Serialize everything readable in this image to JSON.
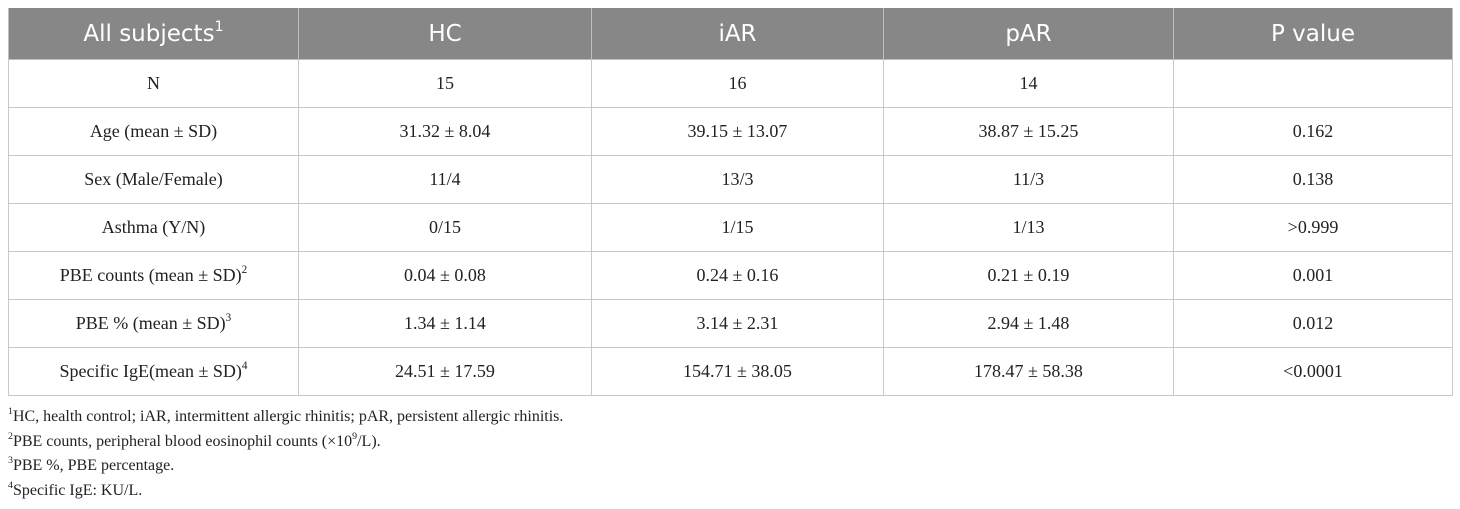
{
  "table": {
    "header": [
      "All subjects",
      "HC",
      "iAR",
      "pAR",
      "P value"
    ],
    "header_note": "1",
    "rows": [
      {
        "label": "N",
        "values": [
          "15",
          "16",
          "14",
          null
        ]
      },
      {
        "label": "Age (mean ± SD)",
        "values": [
          "31.32 ± 8.04",
          "39.15 ± 13.07",
          "38.87 ± 15.25",
          "0.162"
        ]
      },
      {
        "label": "Sex (Male/Female)",
        "values": [
          "11/4",
          "13/3",
          "11/3",
          "0.138"
        ]
      },
      {
        "label": "Asthma (Y/N)",
        "values": [
          "0/15",
          "1/15",
          "1/13",
          ">0.999"
        ]
      },
      {
        "label": "PBE counts (mean ± SD)",
        "note": "2",
        "values": [
          "0.04 ± 0.08",
          "0.24 ± 0.16",
          "0.21 ± 0.19",
          "0.001"
        ]
      },
      {
        "label": "PBE % (mean ± SD)",
        "note": "3",
        "values": [
          "1.34 ± 1.14",
          "3.14 ± 2.31",
          "2.94 ± 1.48",
          "0.012"
        ]
      },
      {
        "label": "Specific IgE(mean ± SD)",
        "note": "4",
        "values": [
          "24.51 ± 17.59",
          "154.71 ± 38.05",
          "178.47 ± 58.38",
          "<0.0001"
        ]
      }
    ]
  },
  "footnotes": [
    {
      "mark": "1",
      "text": "HC, health control; iAR, intermittent allergic rhinitis; pAR, persistent allergic rhinitis."
    },
    {
      "mark": "2",
      "text": "PBE counts, peripheral blood eosinophil counts (×10",
      "sup": "9",
      "after": "/L)."
    },
    {
      "mark": "3",
      "text": "PBE %, PBE percentage."
    },
    {
      "mark": "4",
      "text": "Specific IgE: KU/L."
    }
  ]
}
